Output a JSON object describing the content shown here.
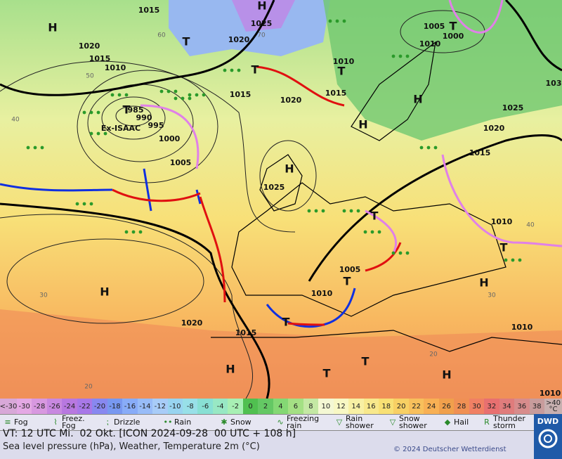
{
  "map": {
    "pressure_centers": [
      "H",
      "H",
      "T",
      "T",
      "T",
      "T",
      "H",
      "H",
      "T",
      "H",
      "T",
      "H",
      "T",
      "H",
      "T",
      "T",
      "H",
      "T",
      "T",
      "H"
    ],
    "isobar_labels": [
      "1015",
      "1020",
      "1015",
      "1010",
      "985",
      "990",
      "995",
      "1000",
      "1005",
      "1025",
      "1020",
      "1015",
      "1020",
      "1025",
      "1010",
      "1015",
      "1005",
      "1000",
      "1010",
      "1025",
      "1020",
      "1015",
      "1010",
      "1005",
      "1010",
      "1015",
      "1020",
      "1010",
      "1010",
      "103"
    ],
    "storm_name": "Ex-ISAAC",
    "graticule_labels": [
      "60",
      "50",
      "40",
      "30",
      "20",
      "70",
      "40",
      "30",
      "20"
    ]
  },
  "temperature_scale": {
    "low_label": "<-30",
    "high_label": ">40",
    "unit": "°C",
    "values": [
      -30,
      -28,
      -26,
      -24,
      -22,
      -20,
      -18,
      -16,
      -14,
      -12,
      -10,
      -8,
      -6,
      -4,
      -2,
      0,
      2,
      4,
      6,
      8,
      10,
      12,
      14,
      16,
      18,
      20,
      22,
      24,
      26,
      28,
      30,
      32,
      34,
      36,
      38
    ],
    "colors": [
      "#e4a8e4",
      "#d898e0",
      "#c888e0",
      "#b878e0",
      "#a878e8",
      "#8888f0",
      "#7898f0",
      "#88acf8",
      "#98bcf8",
      "#a8ccf8",
      "#98d4f0",
      "#98e0e8",
      "#88e0d4",
      "#98e8c4",
      "#a8f0b4",
      "#50c050",
      "#64c864",
      "#84d874",
      "#a4e084",
      "#c4e8a4",
      "#f4f8d4",
      "#f8f8c4",
      "#f8f0a4",
      "#f8e88c",
      "#f8e074",
      "#f8d064",
      "#f8c05c",
      "#f8b054",
      "#f0a04c",
      "#f09054",
      "#f08064",
      "#e87070",
      "#e07c7c",
      "#d88c8c",
      "#c89c9c"
    ],
    "low_color": "#d8a8d8",
    "high_color": "#c8b0b0"
  },
  "weather_legend": [
    "Fog",
    "Freez. Fog",
    "Drizzle",
    "Rain",
    "Snow",
    "Freezing rain",
    "Rain shower",
    "Snow shower",
    "Hail",
    "Thunder storm"
  ],
  "footer": {
    "valid_time": "VT: 12 UTC Mi.  02 Okt. [ICON 2024-09-28  00 UTC + 108 h]",
    "description": "Sea level pressure (hPa), Weather, Temperature 2m (°C)",
    "copyright": "© 2024 Deutscher Wetterdienst",
    "logo": "DWD"
  }
}
